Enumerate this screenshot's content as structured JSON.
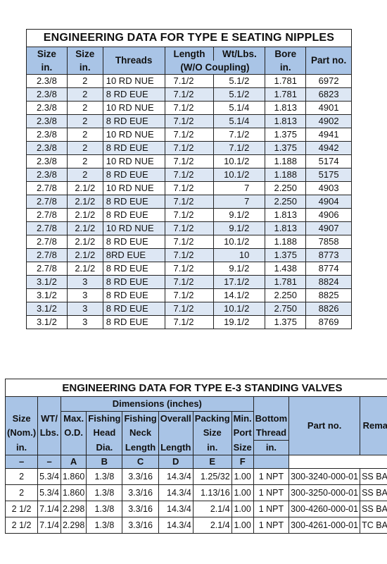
{
  "seating_nipples": {
    "title": "ENGINEERING DATA FOR TYPE  E  SEATING NIPPLES",
    "headers": {
      "size_in_1": "Size",
      "size_in_2": "in.",
      "size_1": "Size",
      "size_2": "in.",
      "threads": "Threads",
      "length": "Length",
      "wt": "Wt/Lbs.",
      "wo_coupling": "(W/O Coupling)",
      "bore_1": "Bore",
      "bore_2": "in.",
      "part": "Part no."
    },
    "rows": [
      [
        "2.3/8",
        "2",
        "10 RD NUE",
        "7.1/2",
        "5.1/2",
        "1.781",
        "6972"
      ],
      [
        "2.3/8",
        "2",
        "8 RD EUE",
        "7.1/2",
        "5.1/2",
        "1.781",
        "6823"
      ],
      [
        "2.3/8",
        "2",
        "10 RD NUE",
        "7.1/2",
        "5.1/4",
        "1.813",
        "4901"
      ],
      [
        "2.3/8",
        "2",
        "8 RD EUE",
        "7.1/2",
        "5.1/4",
        "1.813",
        "4902"
      ],
      [
        "2.3/8",
        "2",
        "10 RD NUE",
        "7.1/2",
        "7.1/2",
        "1.375",
        "4941"
      ],
      [
        "2.3/8",
        "2",
        "8 RD EUE",
        "7.1/2",
        "7.1/2",
        "1.375",
        "4942"
      ],
      [
        "2.3/8",
        "2",
        "10 RD NUE",
        "7.1/2",
        "10.1/2",
        "1.188",
        "5174"
      ],
      [
        "2.3/8",
        "2",
        "8 RD EUE",
        "7.1/2",
        "10.1/2",
        "1.188",
        "5175"
      ],
      [
        "2.7/8",
        "2.1/2",
        "10 RD NUE",
        "7.1/2",
        "7",
        "2.250",
        "4903"
      ],
      [
        "2.7/8",
        "2.1/2",
        "8 RD EUE",
        "7.1/2",
        "7",
        "2.250",
        "4904"
      ],
      [
        "2.7/8",
        "2.1/2",
        "8 RD EUE",
        "7.1/2",
        "9.1/2",
        "1.813",
        "4906"
      ],
      [
        "2.7/8",
        "2.1/2",
        "10 RD NUE",
        "7.1/2",
        "9.1/2",
        "1.813",
        "4907"
      ],
      [
        "2.7/8",
        "2.1/2",
        "8 RD EUE",
        "7.1/2",
        "10.1/2",
        "1.188",
        "7858"
      ],
      [
        "2.7/8",
        "2.1/2",
        "8RD EUE",
        "7.1/2",
        "10",
        "1.375",
        "8773"
      ],
      [
        "2.7/8",
        "2.1/2",
        "8 RD EUE",
        "7.1/2",
        "9.1/2",
        "1.438",
        "8774"
      ],
      [
        "3.1/2",
        "3",
        "8 RD EUE",
        "7.1/2",
        "17.1/2",
        "1.781",
        "8824"
      ],
      [
        "3.1/2",
        "3",
        "8 RD EUE",
        "7.1/2",
        "14.1/2",
        "2.250",
        "8825"
      ],
      [
        "3.1/2",
        "3",
        "8 RD EUE",
        "7.1/2",
        "10.1/2",
        "2.750",
        "8826"
      ],
      [
        "3.1/2",
        "3",
        "8 RD EUE",
        "7.1/2",
        "19.1/2",
        "1.375",
        "8769"
      ]
    ]
  },
  "standing_valves": {
    "title": "ENGINEERING DATA FOR TYPE  E-3  STANDING VALVES",
    "headers": {
      "dimensions": "Dimensions (inches)",
      "size_1": "Size",
      "size_2": "(Nom.)",
      "size_3": "in.",
      "wt_1": "WT/",
      "wt_2": "Lbs.",
      "max_1": "Max.",
      "max_2": "O.D.",
      "fhd_1": "Fishing",
      "fhd_2": "Head",
      "fhd_3": "Dia.",
      "fnl_1": "Fishing",
      "fnl_2": "Neck",
      "fnl_3": "Length",
      "ol_1": "Overall",
      "ol_2": "Length",
      "pk_1": "Packing",
      "pk_2": "Size",
      "pk_3": "in.",
      "mp_1": "Min.",
      "mp_2": "Port",
      "mp_3": "Size",
      "bt_1": "Bottom",
      "bt_2": "Thread",
      "bt_3": "in.",
      "part": "Part no.",
      "remark": "Remark",
      "letters": [
        "–",
        "–",
        "A",
        "B",
        "C",
        "D",
        "E",
        "F"
      ]
    },
    "rows": [
      [
        "2",
        "5.3/4",
        "1.860",
        "1.3/8",
        "3.3/16",
        "14.3/4",
        "1.25/32",
        "1.00",
        "1  NPT",
        "300-3240-000-01",
        "SS BALL"
      ],
      [
        "2",
        "5.3/4",
        "1.860",
        "1.3/8",
        "3.3/16",
        "14.3/4",
        "1.13/16",
        "1.00",
        "1  NPT",
        "300-3250-000-01",
        "SS BALL"
      ],
      [
        "2 1/2",
        "7.1/4",
        "2.298",
        "1.3/8",
        "3.3/16",
        "14.3/4",
        "2.1/4",
        "1.00",
        "1  NPT",
        "300-4260-000-01",
        "SS BALL"
      ],
      [
        "2 1/2",
        "7.1/4",
        "2.298",
        "1.3/8",
        "3.3/16",
        "14.3/4",
        "2.1/4",
        "1.00",
        "1  NPT",
        "300-4261-000-01",
        "TC BALL"
      ]
    ]
  },
  "colors": {
    "header_bg": "#a9c4e6",
    "stripe_bg": "#dde7f4"
  }
}
